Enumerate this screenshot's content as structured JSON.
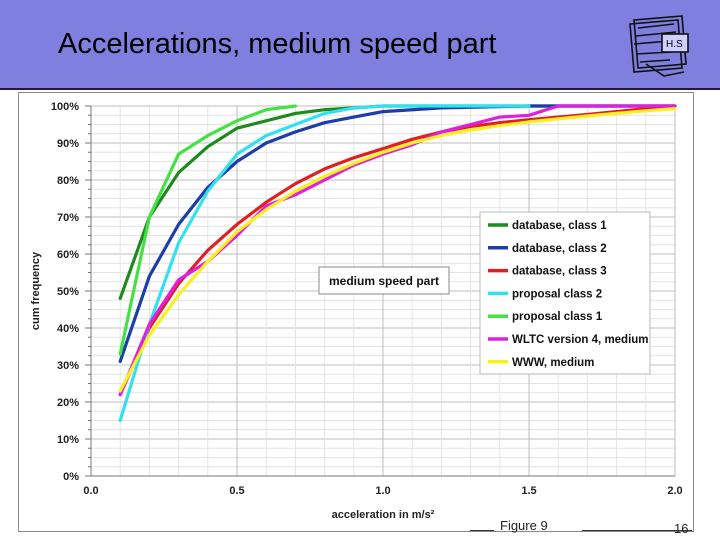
{
  "slide": {
    "title": "Accelerations, medium speed part",
    "logo_text": "H.S",
    "figure_label": "Figure 9",
    "page_number": "16"
  },
  "chart_data": {
    "type": "line",
    "title": "",
    "xlabel": "acceleration in m/s²",
    "ylabel": "cum frequency",
    "xlim": [
      0.0,
      2.0
    ],
    "ylim": [
      0,
      100
    ],
    "x_ticks": [
      "0.0",
      "0.5",
      "1.0",
      "1.5",
      "2.0"
    ],
    "y_ticks": [
      "0%",
      "10%",
      "20%",
      "30%",
      "40%",
      "50%",
      "60%",
      "70%",
      "80%",
      "90%",
      "100%"
    ],
    "grid": true,
    "legend_placement": "right",
    "annotation": "medium speed part",
    "series": [
      {
        "name": "database, class 1",
        "color": "#1e8a1e",
        "x": [
          0.1,
          0.2,
          0.3,
          0.4,
          0.5,
          0.6,
          0.7,
          0.8,
          0.9,
          1.0,
          1.2,
          1.5,
          2.0
        ],
        "y": [
          48,
          70,
          82,
          89,
          94,
          96,
          98,
          99,
          99.5,
          100,
          100,
          100,
          100
        ]
      },
      {
        "name": "database, class 2",
        "color": "#1c3ea8",
        "x": [
          0.1,
          0.2,
          0.3,
          0.4,
          0.5,
          0.6,
          0.7,
          0.8,
          0.9,
          1.0,
          1.2,
          1.5,
          2.0
        ],
        "y": [
          31,
          54,
          68,
          78,
          85,
          90,
          93,
          95.5,
          97,
          98.5,
          99.5,
          100,
          100
        ]
      },
      {
        "name": "database, class 3",
        "color": "#e02020",
        "x": [
          0.1,
          0.2,
          0.3,
          0.4,
          0.5,
          0.6,
          0.7,
          0.8,
          0.9,
          1.0,
          1.1,
          1.2,
          1.3,
          1.4,
          1.5,
          1.6,
          1.7,
          1.8,
          1.9,
          2.0
        ],
        "y": [
          22,
          40,
          52,
          61,
          68,
          74,
          79,
          83,
          86,
          88.5,
          91,
          93,
          94.5,
          95.5,
          96.3,
          97,
          97.7,
          98.5,
          99.3,
          100
        ]
      },
      {
        "name": "proposal class 2",
        "color": "#33e0f0",
        "x": [
          0.1,
          0.2,
          0.3,
          0.4,
          0.5,
          0.6,
          0.7,
          0.8,
          0.9,
          1.0,
          1.2,
          1.5
        ],
        "y": [
          15,
          41,
          63,
          77,
          87,
          92,
          95,
          98,
          99.5,
          100,
          100,
          100
        ]
      },
      {
        "name": "proposal class 1",
        "color": "#44e044",
        "x": [
          0.1,
          0.2,
          0.3,
          0.4,
          0.5,
          0.6,
          0.7
        ],
        "y": [
          33,
          70,
          87,
          92,
          96,
          99,
          100
        ]
      },
      {
        "name": "WLTC version 4, medium",
        "color": "#e020e0",
        "x": [
          0.1,
          0.2,
          0.3,
          0.4,
          0.5,
          0.6,
          0.7,
          0.8,
          0.9,
          1.0,
          1.1,
          1.2,
          1.3,
          1.4,
          1.5,
          1.6,
          1.7,
          2.0
        ],
        "y": [
          22,
          41,
          53,
          58,
          65,
          73,
          76,
          80,
          84,
          87,
          89.5,
          93,
          95,
          97,
          97.5,
          100,
          100,
          100
        ]
      },
      {
        "name": "WWW, medium",
        "color": "#f8f020",
        "x": [
          0.1,
          0.2,
          0.3,
          0.4,
          0.5,
          0.6,
          0.7,
          0.8,
          0.9,
          1.0,
          1.1,
          1.2,
          1.3,
          1.4,
          1.5,
          1.6,
          1.7,
          1.8,
          1.9,
          2.0
        ],
        "y": [
          23,
          38,
          49,
          58,
          66,
          72,
          77,
          81,
          84.5,
          87.5,
          90,
          92,
          93.5,
          94.7,
          95.7,
          96.5,
          97.3,
          98,
          98.7,
          99.3
        ]
      }
    ]
  }
}
